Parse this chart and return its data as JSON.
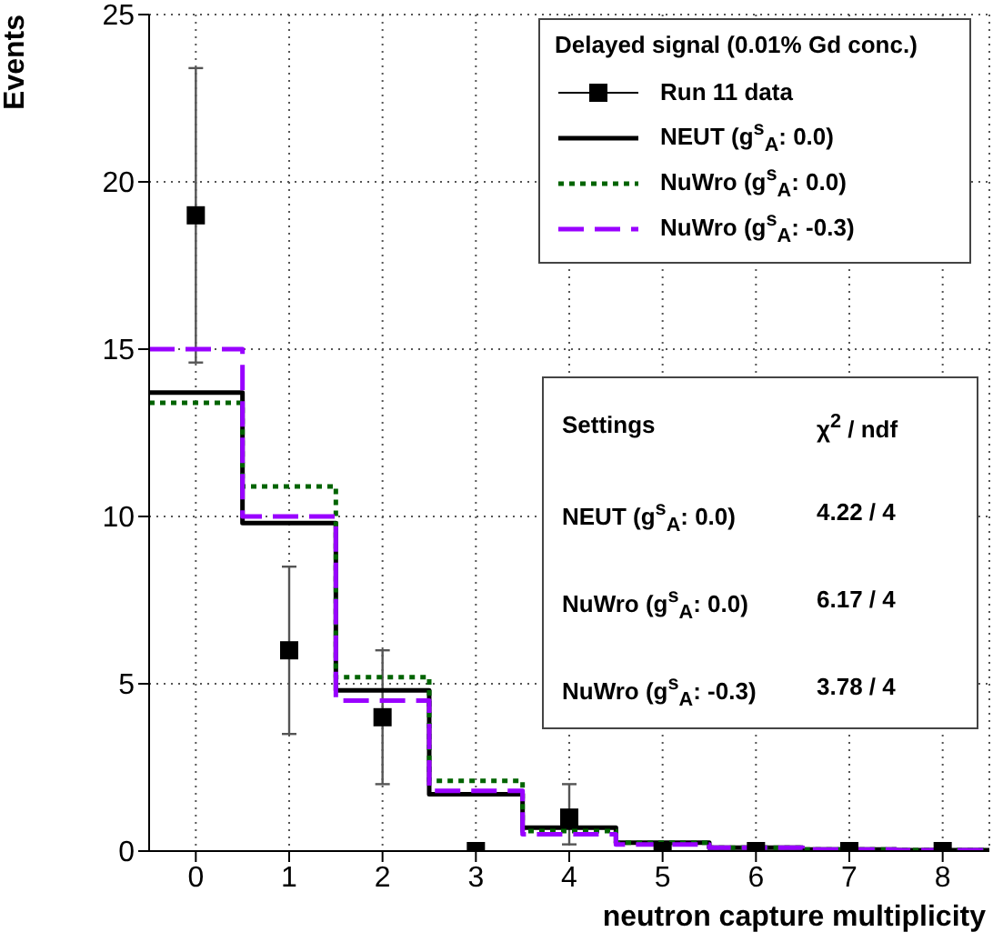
{
  "chart_data": {
    "type": "step",
    "xlabel": "neutron capture multiplicity",
    "ylabel": "Events",
    "legend_title": "Delayed signal (0.01% Gd conc.)",
    "legend": "top right",
    "grid": true,
    "xlim": [
      -0.5,
      8.5
    ],
    "xticks": [
      0,
      1,
      2,
      3,
      4,
      5,
      6,
      7,
      8
    ],
    "ylim": [
      0,
      25
    ],
    "yticks": [
      0,
      5,
      10,
      15,
      20,
      25
    ],
    "series": [
      {
        "name": "Run 11 data",
        "type": "scatter",
        "marker": "square",
        "color": "#000000",
        "x": [
          0,
          1,
          2,
          3,
          4,
          5,
          6,
          7,
          8
        ],
        "values": [
          19,
          6,
          4,
          0,
          1,
          0,
          0,
          0,
          0
        ],
        "errors": [
          [
            14.6,
            23.4
          ],
          [
            3.5,
            8.5
          ],
          [
            2,
            6
          ],
          null,
          [
            0.2,
            2
          ],
          null,
          null,
          null,
          null
        ]
      },
      {
        "name": "NEUT (g$^{s}$$_{A}$: 0.0)",
        "line_style": "solid",
        "color": "#000000",
        "x": [
          -0.5,
          0.5,
          1.5,
          2.5,
          3.5,
          4.5,
          5.5,
          6.5,
          7.5,
          8.5
        ],
        "values": [
          13.7,
          9.8,
          4.8,
          1.7,
          0.7,
          0.25,
          0.1,
          0.05,
          0.03,
          0.03
        ]
      },
      {
        "name": "NuWro (g$^{s}$$_{A}$: 0.0)",
        "line_style": "dotted",
        "color": "#006400",
        "x": [
          -0.5,
          0.5,
          1.5,
          2.5,
          3.5,
          4.5,
          5.5,
          6.5,
          7.5,
          8.5
        ],
        "values": [
          13.4,
          10.9,
          5.2,
          2.1,
          0.6,
          0.25,
          0.1,
          0.05,
          0.03,
          0.03
        ]
      },
      {
        "name": "NuWro (g$^{s}$$_{A}$: -0.3)",
        "line_style": "dashed",
        "color": "#9900ff",
        "x": [
          -0.5,
          0.5,
          1.5,
          2.5,
          3.5,
          4.5,
          5.5,
          6.5,
          7.5,
          8.5
        ],
        "values": [
          15.0,
          10.0,
          4.5,
          1.8,
          0.5,
          0.2,
          0.1,
          0.05,
          0.03,
          0.03
        ]
      }
    ],
    "annotations": [
      "Settings",
      "χ$^{2}$  /  ndf",
      "NEUT (g$^{s}$$_{A}$: 0.0)",
      "4.22 / 4",
      "NuWro (g$^{s}$$_{A}$: 0.0)",
      "6.17 / 4",
      "NuWro (g$^{s}$$_{A}$: -0.3)",
      "3.78 / 4"
    ]
  }
}
